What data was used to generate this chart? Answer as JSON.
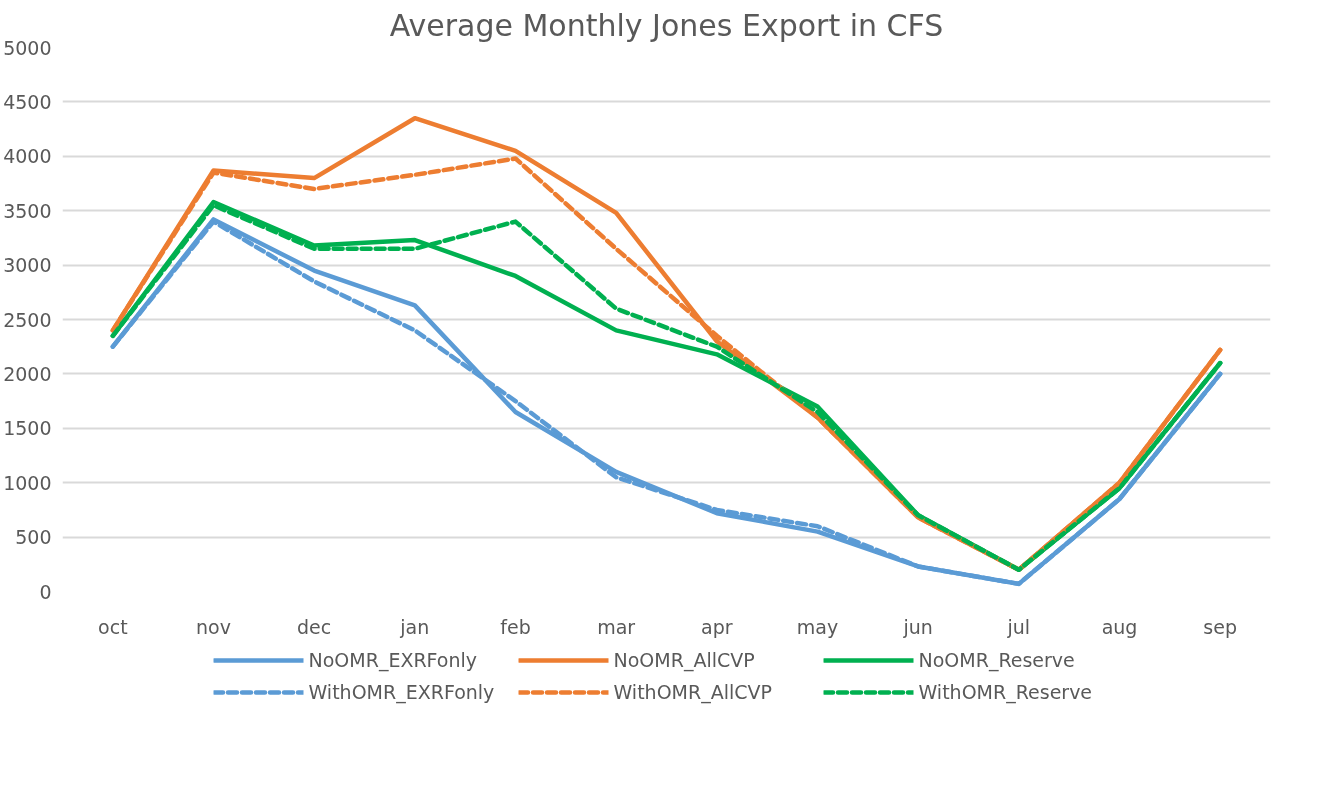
{
  "chart_data": {
    "type": "line",
    "title": "Average Monthly Jones Export in CFS",
    "categories": [
      "oct",
      "nov",
      "dec",
      "jan",
      "feb",
      "mar",
      "apr",
      "may",
      "jun",
      "jul",
      "aug",
      "sep"
    ],
    "ylim": [
      0,
      5000
    ],
    "yticks": [
      0,
      500,
      1000,
      1500,
      2000,
      2500,
      3000,
      3500,
      4000,
      4500,
      5000
    ],
    "grid": "y",
    "legend": "bottom",
    "marker": "none",
    "series": [
      {
        "name": "NoOMR_EXRFonly",
        "color": "#5b9bd5",
        "line_style": "solid",
        "values": [
          2250,
          3420,
          2950,
          2630,
          1650,
          1100,
          720,
          550,
          230,
          70,
          850,
          2000
        ]
      },
      {
        "name": "NoOMR_AllCVP",
        "color": "#ed7d31",
        "line_style": "solid",
        "values": [
          2400,
          3870,
          3800,
          4350,
          4050,
          3480,
          2300,
          1600,
          680,
          200,
          1000,
          2220
        ]
      },
      {
        "name": "NoOMR_Reserve",
        "color": "#00b050",
        "line_style": "solid",
        "values": [
          2350,
          3580,
          3180,
          3230,
          2900,
          2400,
          2180,
          1700,
          700,
          200,
          950,
          2100
        ]
      },
      {
        "name": "WithOMR_EXRFonly",
        "color": "#5b9bd5",
        "line_style": "dashed",
        "values": [
          2250,
          3400,
          2850,
          2400,
          1750,
          1050,
          750,
          600,
          230,
          70,
          850,
          2000
        ]
      },
      {
        "name": "WithOMR_AllCVP",
        "color": "#ed7d31",
        "line_style": "dashed",
        "values": [
          2400,
          3850,
          3700,
          3830,
          3980,
          3150,
          2350,
          1600,
          680,
          200,
          1000,
          2220
        ]
      },
      {
        "name": "WithOMR_Reserve",
        "color": "#00b050",
        "line_style": "dashed",
        "values": [
          2350,
          3550,
          3150,
          3150,
          3400,
          2600,
          2250,
          1650,
          700,
          200,
          950,
          2100
        ]
      }
    ]
  }
}
